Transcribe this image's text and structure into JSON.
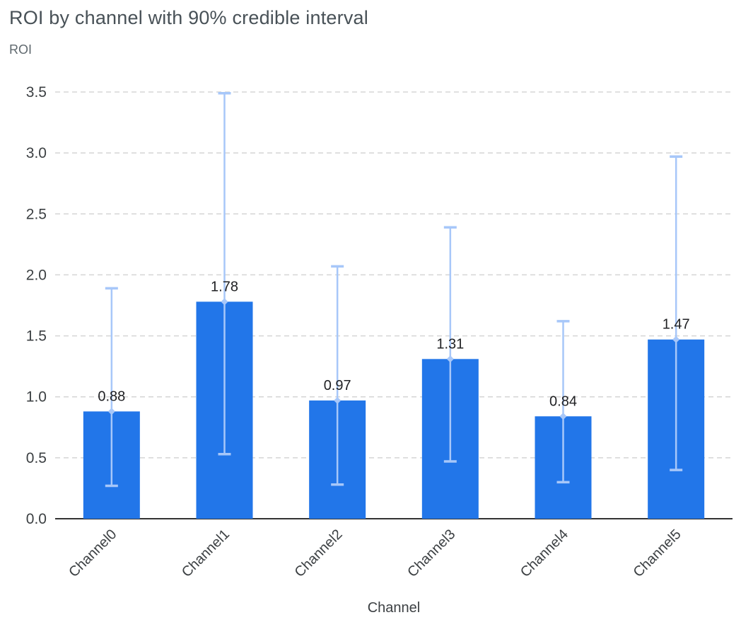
{
  "chart_data": {
    "type": "bar",
    "title": "ROI by channel with 90% credible interval",
    "ylabel": "ROI",
    "xlabel": "Channel",
    "categories": [
      "Channel0",
      "Channel1",
      "Channel2",
      "Channel3",
      "Channel4",
      "Channel5"
    ],
    "values": [
      0.88,
      1.78,
      0.97,
      1.31,
      0.84,
      1.47
    ],
    "value_labels": [
      "0.88",
      "1.78",
      "0.97",
      "1.31",
      "0.84",
      "1.47"
    ],
    "ci_low": [
      0.27,
      0.53,
      0.28,
      0.47,
      0.3,
      0.4
    ],
    "ci_high": [
      1.89,
      3.49,
      2.07,
      2.39,
      1.62,
      2.97
    ],
    "yticks": [
      0.0,
      0.5,
      1.0,
      1.5,
      2.0,
      2.5,
      3.0,
      3.5
    ],
    "ylim": [
      0,
      3.5
    ],
    "grid": true,
    "legend": "none",
    "colors": {
      "bar": "#2276e9",
      "error": "#a7c7f9",
      "grid": "#d5d5d5",
      "axis": "#333333",
      "tick": "#3c4043",
      "value": "#202124",
      "title": "#485157",
      "axis_label": "#5f686e"
    }
  }
}
